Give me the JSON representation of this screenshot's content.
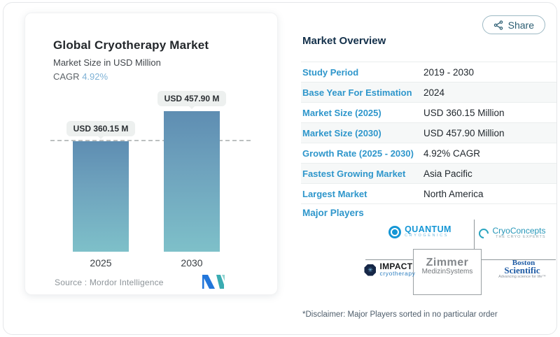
{
  "share": {
    "label": "Share"
  },
  "chart_card": {
    "title": "Global Cryotherapy Market",
    "subtitle": "Market Size in USD Million",
    "cagr_label": "CAGR",
    "cagr_value": "4.92%",
    "source_text": "Source :  Mordor Intelligence"
  },
  "chart_data": {
    "type": "bar",
    "title": "Global Cryotherapy Market",
    "subtitle": "Market Size in USD Million",
    "categories": [
      "2025",
      "2030"
    ],
    "values": [
      360.15,
      457.9
    ],
    "bar_labels": [
      "USD 360.15 M",
      "USD 457.90 M"
    ],
    "unit": "USD Million",
    "ylim": [
      0,
      457.9
    ],
    "grid": "dashed horizontal guide at 360.15",
    "legend": "none",
    "bar_gradient_top": "#5e8db2",
    "bar_gradient_bottom": "#7ec0c9"
  },
  "overview": {
    "heading": "Market Overview",
    "rows": [
      {
        "label": "Study Period",
        "value": "2019 - 2030"
      },
      {
        "label": "Base Year For Estimation",
        "value": "2024"
      },
      {
        "label": "Market Size (2025)",
        "value": "USD 360.15 Million"
      },
      {
        "label": "Market Size (2030)",
        "value": "USD 457.90 Million"
      },
      {
        "label": "Growth Rate (2025 - 2030)",
        "value": "4.92% CAGR"
      },
      {
        "label": "Fastest Growing Market",
        "value": "Asia Pacific"
      },
      {
        "label": "Largest Market",
        "value": "North America"
      }
    ],
    "major_players_label": "Major Players",
    "players": {
      "quantum": {
        "name": "QUANTUM",
        "sub": "CRYOGENICS"
      },
      "cryoconcepts": {
        "name": "CryoConcepts",
        "sub": "THE CRYO EXPERTS"
      },
      "impact": {
        "name": "IMPACT",
        "sub": "cryotherapy",
        "octagon_glyph": "✳"
      },
      "zimmer": {
        "name": "Zimmer",
        "sub": "MedizinSystems"
      },
      "boston": {
        "line1": "Boston",
        "line2": "Scientific",
        "sub": "Advancing science for life™"
      }
    },
    "disclaimer": "*Disclaimer: Major Players sorted in no particular order"
  },
  "colors": {
    "accent_blue": "#2e96cb",
    "heading_navy": "#13304a",
    "cagr_blue": "#7fb2d6",
    "bar_top": "#5e8db2",
    "bar_bottom": "#7ec0c9",
    "pill_bg": "#edf0ef",
    "share_text": "#2b5d72",
    "mordor_blue": "#2276da",
    "mordor_teal": "#3aacb2"
  }
}
